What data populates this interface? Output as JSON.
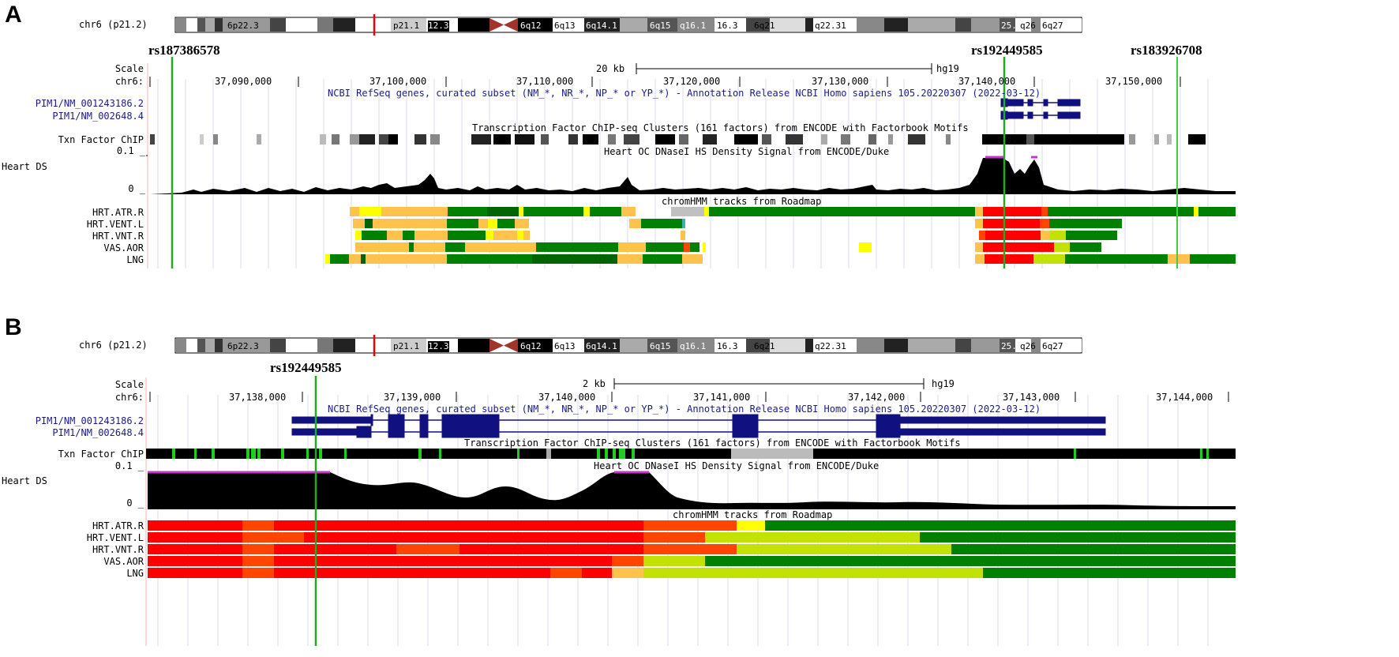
{
  "colors": {
    "gene": "#101080",
    "snp_line": "#22aa22",
    "signal": "#000000",
    "peak_marker": "#cc33cc",
    "cen": "#a0342a",
    "state_active_tss": "#ff0000",
    "state_flank": "#ff4500",
    "state_enhancer": "#ffc34d",
    "state_genic_enh": "#c2e105",
    "state_transcribed": "#008000",
    "state_weak_tx": "#006400",
    "state_znf": "#ffff00",
    "state_repressed": "#c0c0c0"
  },
  "panelA": {
    "letter": "A",
    "ideogram": {
      "chrom_label": "chr6 (p21.2)",
      "bands": [
        "6p22.3",
        "p21.1",
        "12.3",
        "6q12",
        "6q13",
        "6q14.1",
        "6q15",
        "q16.1",
        "16.3",
        "6q21",
        "q22.31",
        "25.3",
        "q26",
        "6q27"
      ]
    },
    "snps": [
      "rs187386578",
      "rs192449585",
      "rs183926708"
    ],
    "scale": {
      "label": "Scale",
      "value": "20 kb",
      "assembly": "hg19"
    },
    "chrom_axis": {
      "label": "chr6:",
      "ticks": [
        "37,090,000",
        "37,100,000",
        "37,110,000",
        "37,120,000",
        "37,130,000",
        "37,140,000",
        "37,150,000"
      ]
    },
    "refseq_desc": "NCBI RefSeq genes, curated subset (NM_*, NR_*, NP_* or YP_*) - Annotation Release NCBI Homo sapiens 105.20220307 (2022-03-12)",
    "genes": [
      "PIM1/NM_001243186.2",
      "PIM1/NM_002648.4"
    ],
    "tfchip_desc": "Transcription Factor ChIP-seq Clusters (161 factors) from ENCODE with Factorbook Motifs",
    "tfchip_label": "Txn Factor ChIP",
    "heart_desc": "Heart OC DNaseI HS Density Signal from ENCODE/Duke",
    "heart_label": "Heart DS",
    "y_max": "0.1 _",
    "y_min": "0 _",
    "chromhmm_desc": "chromHMM tracks from Roadmap",
    "tissues": [
      "HRT.ATR.R",
      "HRT.VENT.L",
      "HRT.VNT.R",
      "VAS.AOR",
      "LNG"
    ]
  },
  "panelB": {
    "letter": "B",
    "ideogram": {
      "chrom_label": "chr6 (p21.2)",
      "bands": [
        "6p22.3",
        "p21.1",
        "12.3",
        "6q12",
        "6q13",
        "6q14.1",
        "6q15",
        "q16.1",
        "16.3",
        "6q21",
        "q22.31",
        "25.3",
        "q26",
        "6q27"
      ]
    },
    "snps": [
      "rs192449585"
    ],
    "scale": {
      "label": "Scale",
      "value": "2 kb",
      "assembly": "hg19"
    },
    "chrom_axis": {
      "label": "chr6:",
      "ticks": [
        "37,138,000",
        "37,139,000",
        "37,140,000",
        "37,141,000",
        "37,142,000",
        "37,143,000",
        "37,144,000"
      ]
    },
    "refseq_desc": "NCBI RefSeq genes, curated subset (NM_*, NR_*, NP_* or YP_*) - Annotation Release NCBI Homo sapiens 105.20220307 (2022-03-12)",
    "genes": [
      "PIM1/NM_001243186.2",
      "PIM1/NM_002648.4"
    ],
    "tfchip_desc": "Transcription Factor ChIP-seq Clusters (161 factors) from ENCODE with Factorbook Motifs",
    "tfchip_label": "Txn Factor ChIP",
    "heart_desc": "Heart OC DNaseI HS Density Signal from ENCODE/Duke",
    "heart_label": "Heart DS",
    "y_max": "0.1 _",
    "y_min": "0 _",
    "chromhmm_desc": "chromHMM tracks from Roadmap",
    "tissues": [
      "HRT.ATR.R",
      "HRT.VENT.L",
      "HRT.VNT.R",
      "VAS.AOR",
      "LNG"
    ]
  }
}
